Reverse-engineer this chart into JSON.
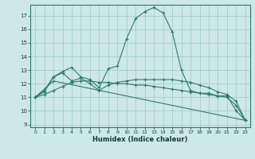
{
  "title": "",
  "xlabel": "Humidex (Indice chaleur)",
  "bg_color": "#cce8e8",
  "line_color": "#2d7a6e",
  "grid_color": "#a0c8c8",
  "xlim": [
    -0.5,
    23.5
  ],
  "ylim": [
    8.8,
    17.8
  ],
  "xticks": [
    0,
    1,
    2,
    3,
    4,
    5,
    6,
    7,
    8,
    9,
    10,
    11,
    12,
    13,
    14,
    15,
    16,
    17,
    18,
    19,
    20,
    21,
    22,
    23
  ],
  "yticks": [
    9,
    10,
    11,
    12,
    13,
    14,
    15,
    16,
    17
  ],
  "line1_x": [
    0,
    1,
    2,
    3,
    4,
    5,
    6,
    7,
    8,
    9,
    10,
    11,
    12,
    13,
    14,
    15,
    16,
    17,
    18,
    19,
    20,
    21,
    22,
    23
  ],
  "line1_y": [
    11.0,
    11.5,
    12.5,
    12.9,
    13.2,
    12.5,
    12.3,
    11.7,
    13.1,
    13.3,
    15.3,
    16.8,
    17.3,
    17.6,
    17.2,
    15.8,
    13.0,
    11.5,
    11.3,
    11.3,
    11.1,
    11.1,
    10.0,
    9.3
  ],
  "line2_x": [
    0,
    1,
    2,
    3,
    4,
    5,
    6,
    7,
    8,
    9,
    10,
    11,
    12,
    13,
    14,
    15,
    16,
    17,
    18,
    19,
    20,
    21,
    22,
    23
  ],
  "line2_y": [
    11.0,
    11.4,
    12.5,
    12.8,
    12.2,
    12.4,
    12.0,
    11.5,
    11.9,
    12.1,
    12.2,
    12.3,
    12.3,
    12.3,
    12.3,
    12.3,
    12.2,
    12.1,
    11.9,
    11.7,
    11.4,
    11.2,
    10.7,
    9.3
  ],
  "line3_x": [
    0,
    1,
    2,
    3,
    4,
    5,
    6,
    7,
    8,
    9,
    10,
    11,
    12,
    13,
    14,
    15,
    16,
    17,
    18,
    19,
    20,
    21,
    22,
    23
  ],
  "line3_y": [
    11.0,
    11.2,
    11.5,
    11.8,
    12.1,
    12.2,
    12.2,
    12.1,
    12.1,
    12.0,
    12.0,
    11.9,
    11.9,
    11.8,
    11.7,
    11.6,
    11.5,
    11.4,
    11.3,
    11.2,
    11.1,
    11.0,
    10.4,
    9.3
  ],
  "line4_x": [
    0,
    2,
    23
  ],
  "line4_y": [
    11.0,
    12.2,
    9.3
  ]
}
